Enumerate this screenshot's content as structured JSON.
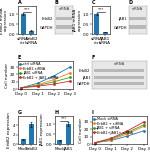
{
  "chart_data": [
    {
      "type": "bar",
      "title": "A",
      "categories": [
        "siRNA\nctrl",
        "ErbB2\nsiRNA"
      ],
      "values": [
        1.0,
        0.18
      ],
      "errors": [
        0.06,
        0.02
      ],
      "y_label": "ErbB2 mRNA\nexpression",
      "annotation": "***",
      "ylim": [
        0,
        1.4
      ],
      "yticks": [
        0.0,
        0.5,
        1.0
      ]
    },
    {
      "type": "blot",
      "title": "B",
      "header": "siRNA",
      "bands": [
        "ErbB2",
        "GAPDH"
      ]
    },
    {
      "type": "bar",
      "title": "C",
      "categories": [
        "siRNA\nctrl",
        "JAB1\nsiRNA"
      ],
      "values": [
        1.0,
        0.12
      ],
      "errors": [
        0.06,
        0.02
      ],
      "y_label": "JAB1 mRNA\nexpression",
      "annotation": "***",
      "ylim": [
        0,
        1.4
      ],
      "yticks": [
        0.0,
        0.5,
        1.0
      ]
    },
    {
      "type": "blot",
      "title": "D",
      "header": "siRNA",
      "bands": [
        "JAB1",
        "GAPDH"
      ]
    },
    {
      "type": "line",
      "title": "E",
      "categories": [
        "Day 0",
        "Day 1",
        "Day 2",
        "Day 3"
      ],
      "series": [
        {
          "name": "ctrl siRNA",
          "values": [
            2,
            8,
            18,
            30
          ]
        },
        {
          "name": "ErbB2 siRNA",
          "values": [
            2,
            6,
            13,
            22
          ]
        },
        {
          "name": "JAB1 siRNA",
          "values": [
            2,
            5,
            10,
            16
          ]
        },
        {
          "name": "ErbB2 + JAB1 siRNA",
          "values": [
            2,
            4,
            7,
            11
          ]
        }
      ],
      "y_label": "Cell number",
      "ylim": [
        0,
        38
      ],
      "yticks": [
        0,
        10,
        20,
        30
      ],
      "legend": "upper left"
    },
    {
      "type": "blot",
      "title": "F",
      "header": "siRNA",
      "bands": [
        "ErbB2",
        "JAB1",
        "GAPDH"
      ]
    },
    {
      "type": "bar",
      "title": "G",
      "categories": [
        "Mock",
        "ErbB2"
      ],
      "values": [
        1.0,
        4.2
      ],
      "errors": [
        0.15,
        0.5
      ],
      "y_label": "ErbB2 expression",
      "ylim": [
        0,
        6
      ],
      "yticks": [
        0,
        2,
        4
      ]
    },
    {
      "type": "bar",
      "title": "H",
      "categories": [
        "Mock",
        "JAB1"
      ],
      "values": [
        0.2,
        1.0
      ],
      "errors": [
        0.03,
        0.08
      ],
      "y_label": "JAB1 expression",
      "annotation": "***",
      "ylim": [
        0,
        1.4
      ],
      "yticks": [
        0.0,
        0.5,
        1.0
      ]
    },
    {
      "type": "line",
      "title": "I",
      "categories": [
        "Day 0",
        "Day 1",
        "Day 2",
        "Day 3"
      ],
      "series": [
        {
          "name": "Mock siRNA",
          "values": [
            2,
            5,
            11,
            18
          ]
        },
        {
          "name": "ErbB2 + siRNA",
          "values": [
            2,
            6,
            14,
            24
          ]
        },
        {
          "name": "JAB1 + siRNA",
          "values": [
            2,
            7,
            16,
            26
          ]
        },
        {
          "name": "ErbB2+JAB1+ siRNA",
          "values": [
            2,
            8,
            18,
            30
          ]
        }
      ],
      "y_label": "Cell number",
      "ylim": [
        0,
        38
      ],
      "yticks": [
        0,
        10,
        20,
        30
      ],
      "legend": "upper left"
    }
  ]
}
